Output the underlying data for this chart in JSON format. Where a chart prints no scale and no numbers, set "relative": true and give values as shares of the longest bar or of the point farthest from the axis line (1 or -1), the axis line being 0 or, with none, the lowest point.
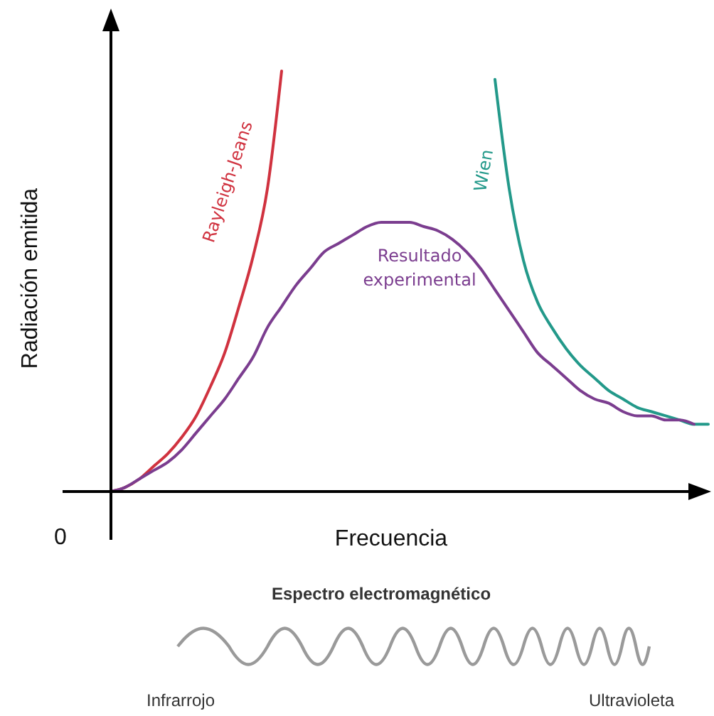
{
  "chart_data": {
    "type": "line",
    "relative": true,
    "xlabel": "Frecuencia",
    "ylabel": "Radiación emitida",
    "categories": [
      null,
      null,
      null,
      null,
      null,
      null,
      null,
      null,
      null,
      null,
      null,
      null,
      null,
      null,
      null,
      null,
      null,
      null,
      null,
      null,
      null,
      null,
      null,
      null,
      null,
      null,
      null,
      null,
      null,
      null,
      null,
      null,
      null,
      null,
      null,
      null,
      null,
      null,
      null,
      null,
      null,
      null,
      null
    ],
    "series": [
      {
        "name": "Rayleigh-Jeans",
        "color": "#d0323f",
        "values": [
          0,
          0.01,
          0.03,
          0.06,
          0.09,
          0.13,
          0.18,
          0.25,
          0.33,
          0.44,
          0.56,
          0.72,
          1.0,
          null,
          null,
          null,
          null,
          null,
          null,
          null,
          null,
          null,
          null,
          null,
          null,
          null,
          null,
          null,
          null,
          null,
          null,
          null,
          null,
          null,
          null,
          null,
          null,
          null,
          null,
          null,
          null,
          null,
          null
        ]
      },
      {
        "name": "Wien",
        "color": "#23998a",
        "values": [
          null,
          null,
          null,
          null,
          null,
          null,
          null,
          null,
          null,
          null,
          null,
          null,
          null,
          null,
          null,
          null,
          null,
          null,
          null,
          null,
          null,
          null,
          null,
          null,
          null,
          null,
          null,
          0.98,
          0.72,
          0.55,
          0.45,
          0.39,
          0.34,
          0.3,
          0.27,
          0.24,
          0.22,
          0.2,
          0.19,
          0.18,
          0.17,
          0.16,
          0.16
        ]
      },
      {
        "name": "Resultado experimental",
        "color": "#7b3d8f",
        "values": [
          0,
          0.01,
          0.03,
          0.05,
          0.07,
          0.1,
          0.14,
          0.18,
          0.22,
          0.27,
          0.32,
          0.39,
          0.44,
          0.49,
          0.53,
          0.57,
          0.59,
          0.61,
          0.63,
          0.64,
          0.64,
          0.64,
          0.63,
          0.62,
          0.6,
          0.57,
          0.53,
          0.48,
          0.43,
          0.38,
          0.33,
          0.3,
          0.27,
          0.24,
          0.22,
          0.21,
          0.19,
          0.18,
          0.18,
          0.17,
          0.17,
          0.16,
          null
        ]
      }
    ],
    "marker": "none",
    "line_style": "solid",
    "annotations": [
      "0",
      "Espectro electromagnético",
      "Infrarrojo",
      "Ultravioleta"
    ]
  }
}
